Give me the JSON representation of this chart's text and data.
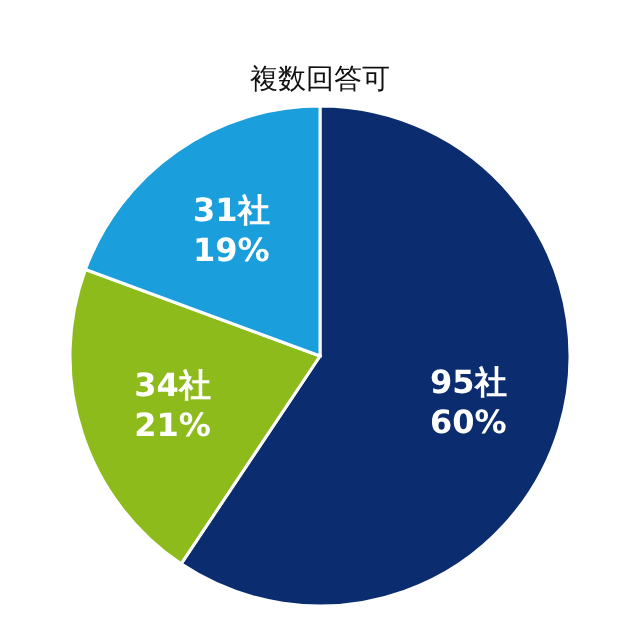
{
  "chart_data": {
    "type": "pie",
    "title": "複数回答可",
    "categories": [
      null,
      null,
      null
    ],
    "values": [
      95,
      34,
      31
    ],
    "colors": [
      "#0b2d6f",
      "#8cbb1b",
      "#1a9fdc"
    ],
    "value_labels": [
      "95社\n60%",
      "34社\n21%",
      "31社\n19%"
    ]
  }
}
